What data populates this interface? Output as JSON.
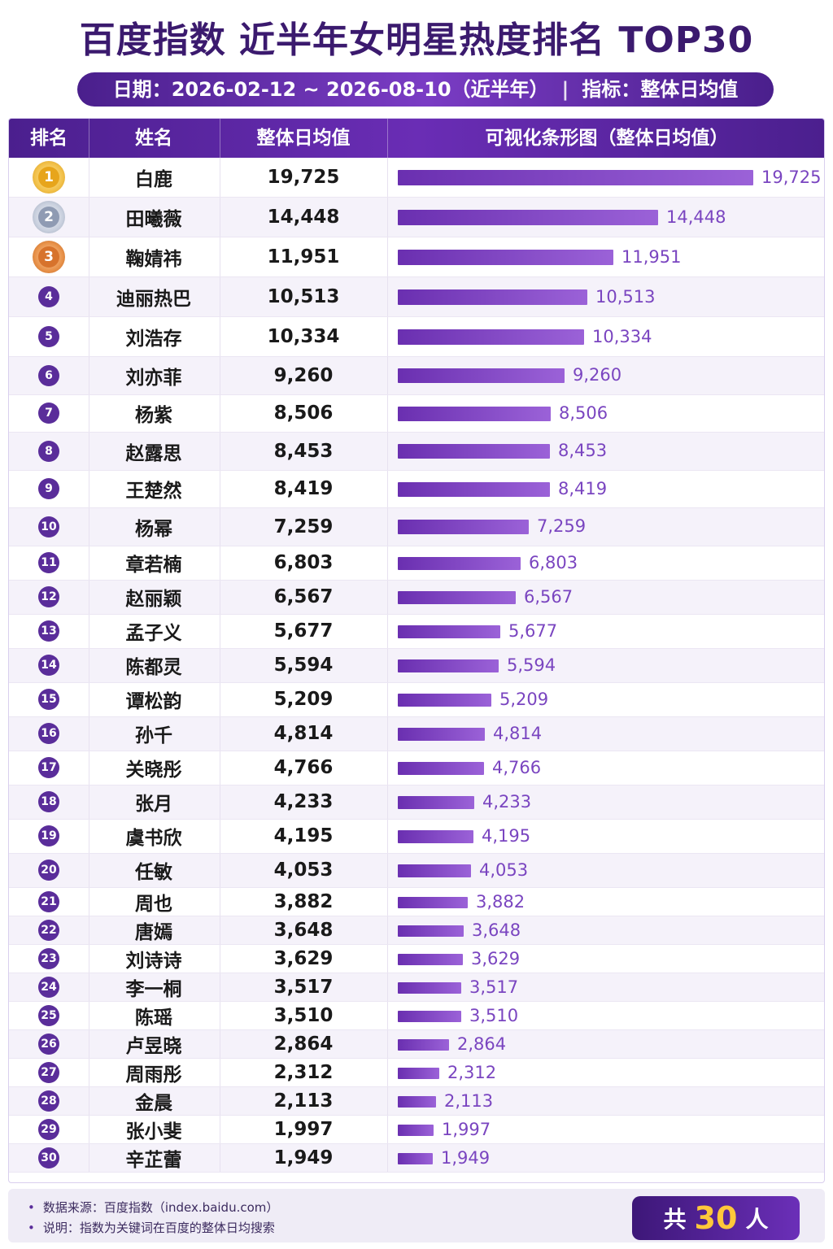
{
  "title": "百度指数 近半年女明星热度排名 TOP30",
  "subtitle": {
    "date_label": "日期：",
    "date_range": "2026-02-12 ~ 2026-08-10（近半年）",
    "separator": "|",
    "metric_label": "指标：",
    "metric": "整体日均值"
  },
  "table": {
    "headers": [
      "排名",
      "姓名",
      "整体日均值",
      "可视化条形图（整体日均值）"
    ]
  },
  "chart_data": {
    "type": "bar",
    "title": "百度指数 近半年女明星热度排名 TOP30",
    "categories": [
      "白鹿",
      "田曦薇",
      "鞠婧祎",
      "迪丽热巴",
      "刘浩存",
      "刘亦菲",
      "杨紫",
      "赵露思",
      "王楚然",
      "杨幂",
      "章若楠",
      "赵丽颖",
      "孟子义",
      "陈都灵",
      "谭松韵",
      "孙千",
      "关晓彤",
      "张月",
      "虞书欣",
      "任敏",
      "周也",
      "唐嫣",
      "刘诗诗",
      "李一桐",
      "陈瑶",
      "卢昱晓",
      "周雨彤",
      "金晨",
      "张小斐",
      "辛芷蕾"
    ],
    "values": [
      19725,
      14448,
      11951,
      10513,
      10334,
      9260,
      8506,
      8453,
      8419,
      7259,
      6803,
      6567,
      5677,
      5594,
      5209,
      4814,
      4766,
      4233,
      4195,
      4053,
      3882,
      3648,
      3629,
      3517,
      3510,
      2864,
      2312,
      2113,
      1997,
      1949
    ],
    "value_labels": [
      "19,725",
      "14,448",
      "11,951",
      "10,513",
      "10,334",
      "9,260",
      "8,506",
      "8,453",
      "8,419",
      "7,259",
      "6,803",
      "6,567",
      "5,677",
      "5,594",
      "5,209",
      "4,814",
      "4,766",
      "4,233",
      "4,195",
      "4,053",
      "3,882",
      "3,648",
      "3,629",
      "3,517",
      "3,510",
      "2,864",
      "2,312",
      "2,113",
      "1,997",
      "1,949"
    ],
    "orientation": "horizontal",
    "bar_color": "#7b3fc4",
    "medal_colors": [
      "#e7a51b",
      "#8f9bb3",
      "#d7732c"
    ]
  },
  "footer": {
    "notes": [
      "数据来源：百度指数（index.baidu.com）",
      "说明：指数为关键词在百度的整体日均搜索"
    ],
    "total_prefix": "共",
    "total_count": "30",
    "total_suffix": "人"
  }
}
